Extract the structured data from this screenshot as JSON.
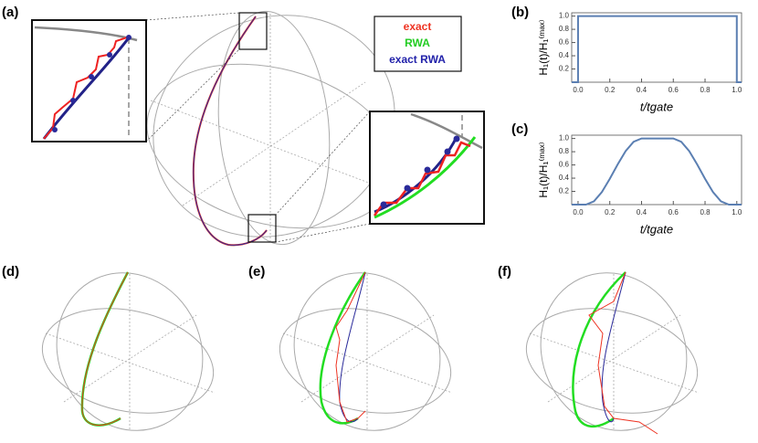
{
  "panels": {
    "a": "(a)",
    "b": "(b)",
    "c": "(c)",
    "d": "(d)",
    "e": "(e)",
    "f": "(f)"
  },
  "legend": {
    "exact": "exact",
    "rwa": "RWA",
    "exact_rwa": "exact RWA"
  },
  "chart_data": [
    {
      "type": "line",
      "xlabel": "t/tgate",
      "ylabel": "H₁(t)/H₁⁽ᵐᵃˣ⁾",
      "x": [
        -0.04,
        0,
        0,
        1,
        1,
        1.03
      ],
      "series": [
        {
          "color": "#5b7fb2",
          "values": [
            0,
            0,
            1,
            1,
            0,
            0
          ]
        }
      ],
      "xlim": [
        -0.04,
        1.03
      ],
      "ylim": [
        0,
        1.05
      ],
      "xticks": [
        {
          "value": 0,
          "label": "0.0"
        },
        0.2,
        0.4,
        0.6,
        0.8,
        {
          "value": 1,
          "label": "1.0"
        }
      ],
      "yticks": [
        0.2,
        0.4,
        0.6,
        0.8,
        {
          "value": 1,
          "label": "1.0"
        }
      ]
    },
    {
      "type": "line",
      "xlabel": "t/tgate",
      "ylabel": "H₁(t)/H₁⁽ᵐᵃˣ⁾",
      "x": [
        -0.04,
        0,
        0.05,
        0.1,
        0.15,
        0.2,
        0.25,
        0.3,
        0.35,
        0.4,
        0.6,
        0.65,
        0.7,
        0.75,
        0.8,
        0.85,
        0.9,
        0.95,
        1,
        1.03
      ],
      "series": [
        {
          "color": "#5b7fb2",
          "values": [
            0,
            0,
            0,
            0.05,
            0.19,
            0.39,
            0.61,
            0.81,
            0.95,
            1,
            1,
            0.95,
            0.81,
            0.61,
            0.39,
            0.19,
            0.05,
            0,
            0,
            0
          ]
        }
      ],
      "xlim": [
        -0.04,
        1.03
      ],
      "ylim": [
        0,
        1.05
      ],
      "xticks": [
        {
          "value": 0,
          "label": "0.0"
        },
        0.2,
        0.4,
        0.6,
        0.8,
        {
          "value": 1,
          "label": "1.0"
        }
      ],
      "yticks": [
        0.2,
        0.4,
        0.6,
        0.8,
        {
          "value": 1,
          "label": "1.0"
        }
      ]
    }
  ]
}
